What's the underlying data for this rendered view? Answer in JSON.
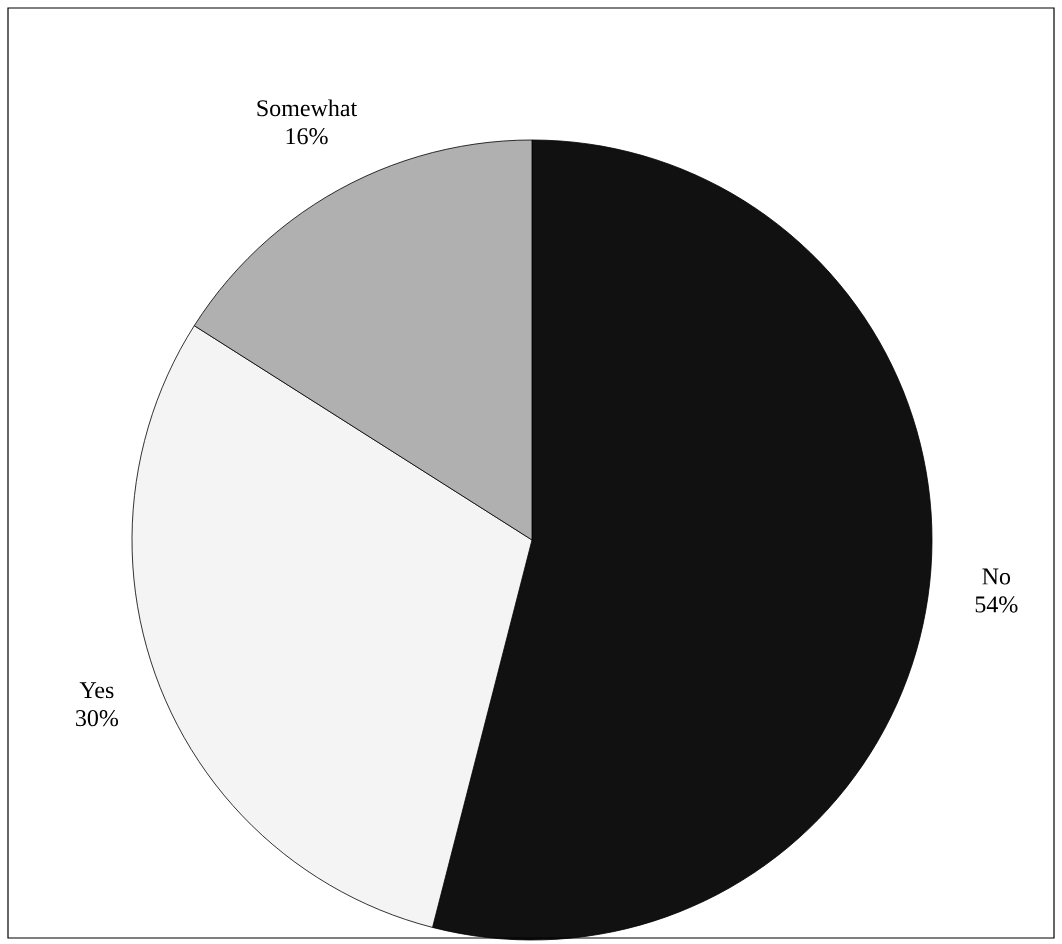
{
  "chart_data": {
    "type": "pie",
    "categories": [
      "No",
      "Yes",
      "Somewhat"
    ],
    "values": [
      54,
      30,
      16
    ],
    "value_labels": [
      "54%",
      "30%",
      "16%"
    ],
    "colors": [
      "#111111",
      "#f4f4f4",
      "#b0b0b0"
    ]
  }
}
